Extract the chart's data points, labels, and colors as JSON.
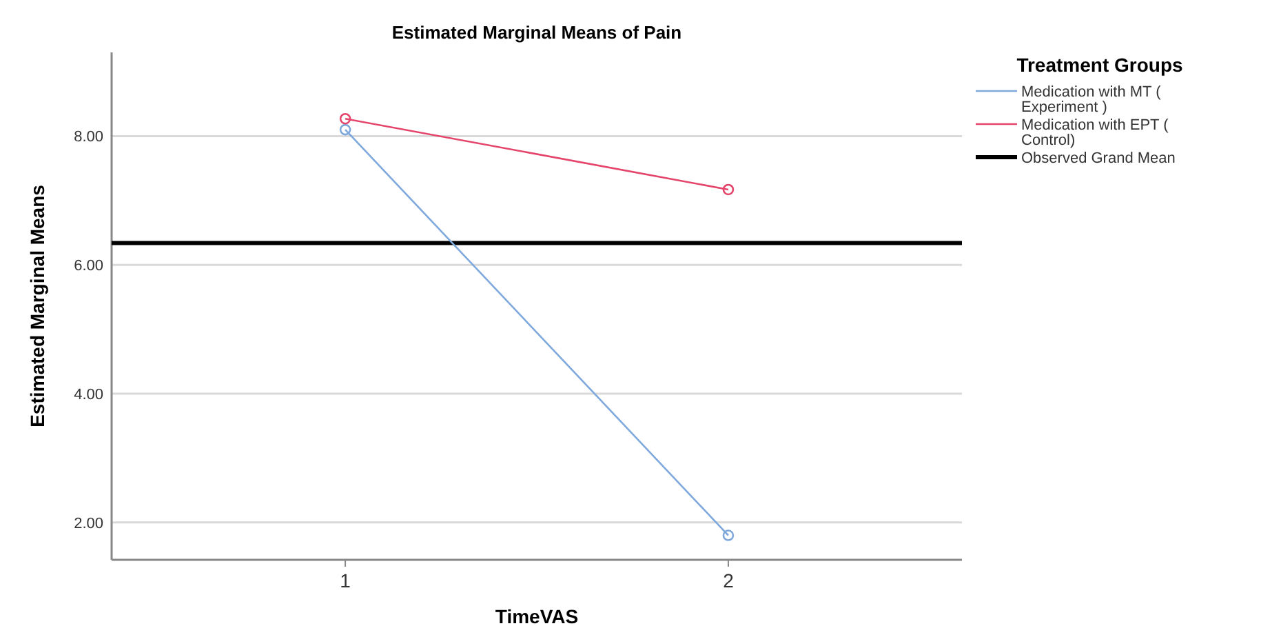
{
  "chart_data": {
    "type": "line",
    "title": "Estimated Marginal Means of Pain",
    "xlabel": "TimeVAS",
    "ylabel": "Estimated Marginal Means",
    "legend_title": "Treatment Groups",
    "categories": [
      "1",
      "2"
    ],
    "series": [
      {
        "name": "Medication with MT ( Experiment )",
        "color": "#7fa9dc",
        "values": [
          8.1,
          1.8
        ]
      },
      {
        "name": "Medication with EPT ( Control)",
        "color": "#e5456b",
        "values": [
          8.27,
          7.17
        ]
      }
    ],
    "ref_lines": [
      {
        "axis": "y",
        "value": 6.34,
        "label": "Observed Grand Mean",
        "color": "#000000"
      }
    ],
    "ylim": [
      1.42,
      9.3
    ],
    "yticks": [
      {
        "value": 2,
        "label": "2.00"
      },
      {
        "value": 4,
        "label": "4.00"
      },
      {
        "value": 6,
        "label": "6.00"
      },
      {
        "value": 8,
        "label": "8.00"
      }
    ],
    "grid": "y",
    "legend": "top right",
    "marker": "circle",
    "line_style": "solid"
  }
}
